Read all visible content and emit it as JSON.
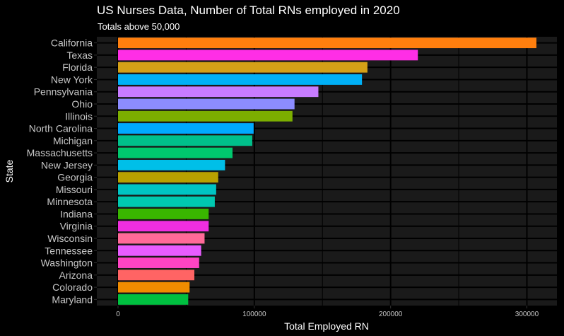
{
  "chart_data": {
    "type": "bar",
    "orientation": "horizontal",
    "title": "US Nurses Data, Number of Total RNs employed in 2020",
    "subtitle": "Totals above 50,000",
    "xlabel": "Total Employed RN",
    "ylabel": "State",
    "xlim": [
      0,
      320000
    ],
    "xticks": [
      0,
      100000,
      200000,
      300000
    ],
    "xtick_labels": [
      "0",
      "100000",
      "200000",
      "300000"
    ],
    "grid": true,
    "legend": "none",
    "background": "#1a1a1a",
    "categories": [
      "California",
      "Texas",
      "Florida",
      "New York",
      "Pennsylvania",
      "Ohio",
      "Illinois",
      "North Carolina",
      "Michigan",
      "Massachusetts",
      "New Jersey",
      "Georgia",
      "Missouri",
      "Minnesota",
      "Indiana",
      "Virginia",
      "Wisconsin",
      "Tennessee",
      "Washington",
      "Arizona",
      "Colorado",
      "Maryland"
    ],
    "values": [
      307000,
      220000,
      183000,
      179000,
      147000,
      129500,
      128000,
      99500,
      98500,
      84000,
      78500,
      73500,
      72000,
      71000,
      66500,
      66500,
      63500,
      61000,
      59500,
      56000,
      52500,
      51500
    ],
    "colors": [
      "#ff7f0e",
      "#ff2ee6",
      "#d4a017",
      "#00b0f6",
      "#c77cff",
      "#8c8cff",
      "#7cae00",
      "#00a9ff",
      "#00c08b",
      "#00c86e",
      "#00bfe8",
      "#b8a100",
      "#00c4c4",
      "#00c8b0",
      "#39b600",
      "#f02ee0",
      "#ff6a98",
      "#e85cff",
      "#ff44c4",
      "#ff6464",
      "#f08c00",
      "#00c040"
    ]
  }
}
